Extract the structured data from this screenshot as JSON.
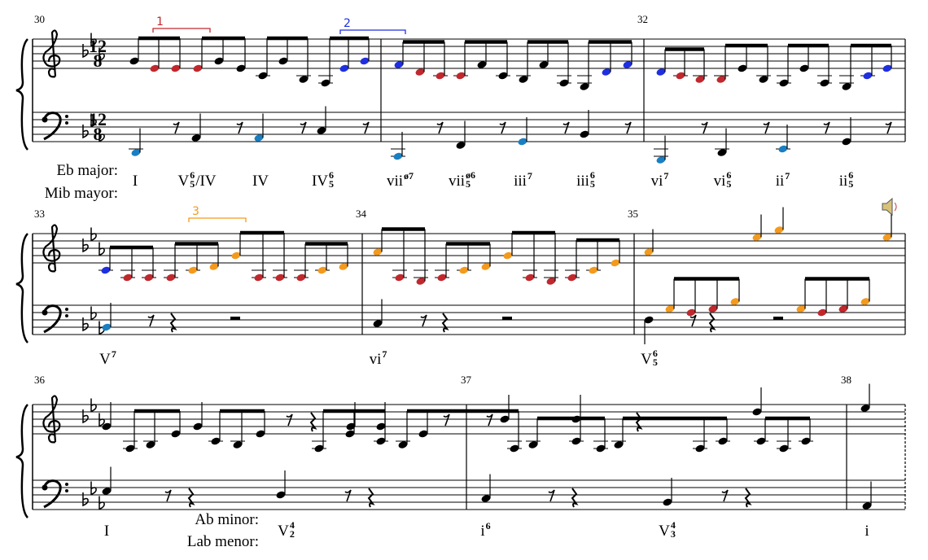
{
  "measure_numbers": [
    "30",
    "32",
    "33",
    "34",
    "35",
    "36",
    "37",
    "38"
  ],
  "time_signature": {
    "top": "12",
    "bottom": "8"
  },
  "brackets": [
    {
      "label": "1",
      "color": "#c0282d"
    },
    {
      "label": "2",
      "color": "#1f2fe0"
    },
    {
      "label": "3",
      "color": "#f39a1e"
    }
  ],
  "key_labels": [
    "Eb major:",
    "Mib mayor:",
    "Ab minor:",
    "Lab menor:"
  ],
  "numerals": [
    {
      "text": "I"
    },
    {
      "text": "V",
      "sup": "6",
      "sub": "5",
      "suffix": "/IV"
    },
    {
      "text": "IV"
    },
    {
      "text": "IV",
      "sup": "6",
      "sub": "5"
    },
    {
      "text": "vii",
      "sup": "ø7"
    },
    {
      "text": "vii",
      "sup": "ø6",
      "sub": "5"
    },
    {
      "text": "iii",
      "sup": "7"
    },
    {
      "text": "iii",
      "sup": "6",
      "sub": "5"
    },
    {
      "text": "vi",
      "sup": "7"
    },
    {
      "text": "vi",
      "sup": "6",
      "sub": "5"
    },
    {
      "text": "ii",
      "sup": "7"
    },
    {
      "text": "ii",
      "sup": "6",
      "sub": "5"
    },
    {
      "text": "V",
      "sup": "7"
    },
    {
      "text": "vi",
      "sup": "7"
    },
    {
      "text": "V",
      "sup": "6",
      "sub": "5"
    },
    {
      "text": "I"
    },
    {
      "text": "V",
      "sup": "4",
      "sub": "2"
    },
    {
      "text": "i",
      "sup": "6"
    },
    {
      "text": "V",
      "sup": "4",
      "sub": "3"
    },
    {
      "text": "i"
    }
  ]
}
